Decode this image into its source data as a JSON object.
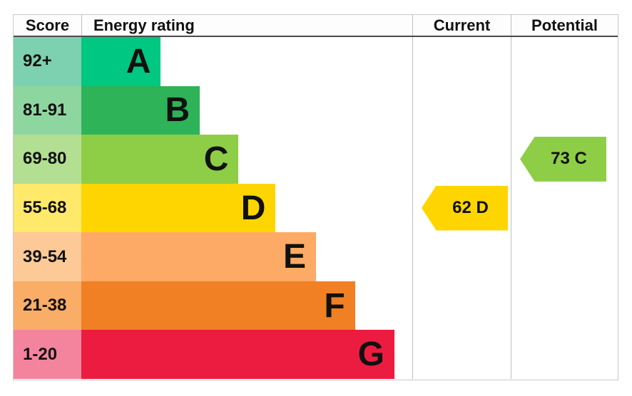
{
  "chart_data": {
    "type": "bar",
    "title": "Energy rating (EPC band chart)",
    "columns": {
      "score": "Score",
      "rating": "Energy rating",
      "current": "Current",
      "potential": "Potential"
    },
    "bands": [
      {
        "letter": "A",
        "score_range": "92+",
        "bar_color": "#00c781",
        "score_color": "#7ed1b0",
        "bar_width_pct": 24.0
      },
      {
        "letter": "B",
        "score_range": "81-91",
        "bar_color": "#2eb358",
        "score_color": "#8ed6a0",
        "bar_width_pct": 35.8
      },
      {
        "letter": "C",
        "score_range": "69-80",
        "bar_color": "#8dce46",
        "score_color": "#b3df92",
        "bar_width_pct": 47.5
      },
      {
        "letter": "D",
        "score_range": "55-68",
        "bar_color": "#ffd500",
        "score_color": "#ffe96b",
        "bar_width_pct": 58.7
      },
      {
        "letter": "E",
        "score_range": "39-54",
        "bar_color": "#fcaa65",
        "score_color": "#fdc997",
        "bar_width_pct": 70.9
      },
      {
        "letter": "F",
        "score_range": "21-38",
        "bar_color": "#f08023",
        "score_color": "#f9ad67",
        "bar_width_pct": 82.7
      },
      {
        "letter": "G",
        "score_range": "1-20",
        "bar_color": "#ec1c40",
        "score_color": "#f4849e",
        "bar_width_pct": 94.6
      }
    ],
    "markers": {
      "current": {
        "value": 62,
        "band": "D",
        "label": "62 D",
        "color": "#ffd500"
      },
      "potential": {
        "value": 73,
        "band": "C",
        "label": "73 C",
        "color": "#8dce46"
      }
    }
  }
}
